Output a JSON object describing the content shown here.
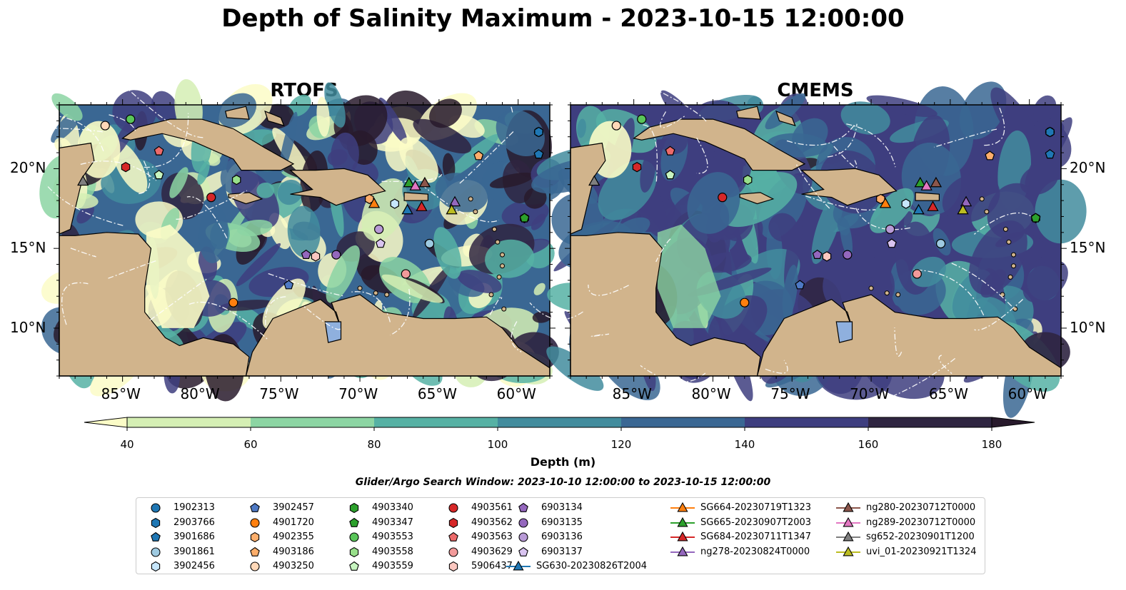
{
  "title": "Depth of Salinity Maximum - 2023-10-15 12:00:00",
  "panels": [
    {
      "title": "RTOFS"
    },
    {
      "title": "CMEMS"
    }
  ],
  "axes": {
    "xticks": [
      "85°W",
      "80°W",
      "75°W",
      "70°W",
      "65°W",
      "60°W"
    ],
    "xtick_values": [
      -85,
      -80,
      -75,
      -70,
      -65,
      -60
    ],
    "yticks": [
      "20°N",
      "15°N",
      "10°N"
    ],
    "ytick_values": [
      20,
      15,
      10
    ],
    "xlim": [
      -89,
      -58
    ],
    "ylim": [
      7,
      24
    ]
  },
  "colorbar": {
    "label": "Depth (m)",
    "ticks": [
      "40",
      "60",
      "80",
      "100",
      "120",
      "140",
      "160",
      "180"
    ],
    "tick_values": [
      40,
      60,
      80,
      100,
      120,
      140,
      160,
      180
    ],
    "colors": [
      "#fbfcc7",
      "#d5efb4",
      "#8cd5a3",
      "#56b1a4",
      "#428c9d",
      "#3a6793",
      "#3e3e7f",
      "#2f2541",
      "#281a2c"
    ],
    "extend": "both"
  },
  "search_window": "Glider/Argo Search Window: 2023-10-10 12:00:00 to 2023-10-15 12:00:00",
  "chart_data": {
    "type": "map",
    "title": "Depth of Salinity Maximum - 2023-10-15 12:00:00",
    "colorbar_label": "Depth (m)",
    "vmin": 40,
    "vmax": 180,
    "observations": [
      {
        "id": "1902313",
        "kind": "argo",
        "marker": "circle",
        "color": "#1f77b4",
        "lon": -58.7,
        "lat": 22.3
      },
      {
        "id": "2903766",
        "kind": "argo",
        "marker": "hexagon",
        "color": "#1f77b4",
        "lon": -58.7,
        "lat": 22.3
      },
      {
        "id": "3901686",
        "kind": "argo",
        "marker": "pentagon",
        "color": "#1f77b4",
        "lon": -58.7,
        "lat": 20.9
      },
      {
        "id": "3901861",
        "kind": "argo",
        "marker": "circle",
        "color": "#9ecae1",
        "lon": -65.6,
        "lat": 15.3
      },
      {
        "id": "3902456",
        "kind": "argo",
        "marker": "hexagon",
        "color": "#c6e6fb",
        "lon": -67.8,
        "lat": 17.8
      },
      {
        "id": "3902457",
        "kind": "argo",
        "marker": "pentagon",
        "color": "#4e79c4",
        "lon": -74.5,
        "lat": 12.7
      },
      {
        "id": "4901720",
        "kind": "argo",
        "marker": "circle",
        "color": "#ff7f0e",
        "lon": -78.0,
        "lat": 11.6
      },
      {
        "id": "4902355",
        "kind": "argo",
        "marker": "hexagon",
        "color": "#fdae6b",
        "lon": -69.4,
        "lat": 18.1
      },
      {
        "id": "4903186",
        "kind": "argo",
        "marker": "pentagon",
        "color": "#fdae6b",
        "lon": -62.5,
        "lat": 20.8
      },
      {
        "id": "4903250",
        "kind": "argo",
        "marker": "circle",
        "color": "#ffd8b8",
        "lon": -86.1,
        "lat": 22.7
      },
      {
        "id": "4903340",
        "kind": "argo",
        "marker": "hexagon",
        "color": "#2ca02c",
        "lon": -59.6,
        "lat": 16.9
      },
      {
        "id": "4903347",
        "kind": "argo",
        "marker": "pentagon",
        "color": "#2ca02c",
        "lon": -59.6,
        "lat": 16.9
      },
      {
        "id": "4903553",
        "kind": "argo",
        "marker": "circle",
        "color": "#59c559",
        "lon": -84.5,
        "lat": 23.1
      },
      {
        "id": "4903558",
        "kind": "argo",
        "marker": "hexagon",
        "color": "#98df8a",
        "lon": -77.8,
        "lat": 19.3
      },
      {
        "id": "4903559",
        "kind": "argo",
        "marker": "pentagon",
        "color": "#c7f5c0",
        "lon": -82.7,
        "lat": 19.6
      },
      {
        "id": "4903561",
        "kind": "argo",
        "marker": "circle",
        "color": "#d62728",
        "lon": -79.4,
        "lat": 18.2
      },
      {
        "id": "4903562",
        "kind": "argo",
        "marker": "hexagon",
        "color": "#d62728",
        "lon": -84.8,
        "lat": 20.1
      },
      {
        "id": "4903563",
        "kind": "argo",
        "marker": "pentagon",
        "color": "#ec6a6a",
        "lon": -82.7,
        "lat": 21.1
      },
      {
        "id": "4903629",
        "kind": "argo",
        "marker": "circle",
        "color": "#f29a9a",
        "lon": -67.1,
        "lat": 13.4
      },
      {
        "id": "5906437",
        "kind": "argo",
        "marker": "hexagon",
        "color": "#fbc7c0",
        "lon": -72.8,
        "lat": 14.5
      },
      {
        "id": "6903134",
        "kind": "argo",
        "marker": "pentagon",
        "color": "#9467bd",
        "lon": -73.4,
        "lat": 14.6
      },
      {
        "id": "6903135",
        "kind": "argo",
        "marker": "circle",
        "color": "#9467bd",
        "lon": -71.5,
        "lat": 14.6
      },
      {
        "id": "6903136",
        "kind": "argo",
        "marker": "circle",
        "color": "#b89ad6",
        "lon": -68.8,
        "lat": 16.2
      },
      {
        "id": "6903137",
        "kind": "argo",
        "marker": "pentagon",
        "color": "#d9c4f0",
        "lon": -68.7,
        "lat": 15.3
      },
      {
        "id": "SG630-20230826T2004",
        "kind": "glider",
        "marker": "triangle",
        "color": "#1f77b4",
        "lon": -67.0,
        "lat": 17.4
      },
      {
        "id": "SG664-20230719T1323",
        "kind": "glider",
        "marker": "triangle",
        "color": "#ff7f0e",
        "lon": -69.1,
        "lat": 17.8
      },
      {
        "id": "SG665-20230907T2003",
        "kind": "glider",
        "marker": "triangle",
        "color": "#2ca02c",
        "lon": -66.9,
        "lat": 19.1
      },
      {
        "id": "SG684-20230711T1347",
        "kind": "glider",
        "marker": "triangle",
        "color": "#d62728",
        "lon": -66.1,
        "lat": 17.6
      },
      {
        "id": "ng278-20230824T0000",
        "kind": "glider",
        "marker": "triangle",
        "color": "#9467bd",
        "lon": -64.0,
        "lat": 17.9
      },
      {
        "id": "ng280-20230712T0000",
        "kind": "glider",
        "marker": "triangle",
        "color": "#8c564b",
        "lon": -65.9,
        "lat": 19.1
      },
      {
        "id": "ng289-20230712T0000",
        "kind": "glider",
        "marker": "triangle",
        "color": "#e377c2",
        "lon": -66.5,
        "lat": 18.9
      },
      {
        "id": "sg652-20230901T1200",
        "kind": "glider",
        "marker": "triangle",
        "color": "#7f7f7f",
        "lon": -87.5,
        "lat": 19.2
      },
      {
        "id": "uvi_01-20230921T1324",
        "kind": "glider",
        "marker": "triangle",
        "color": "#bcbd22",
        "lon": -64.2,
        "lat": 17.4
      }
    ]
  },
  "legend_title_hidden": ""
}
